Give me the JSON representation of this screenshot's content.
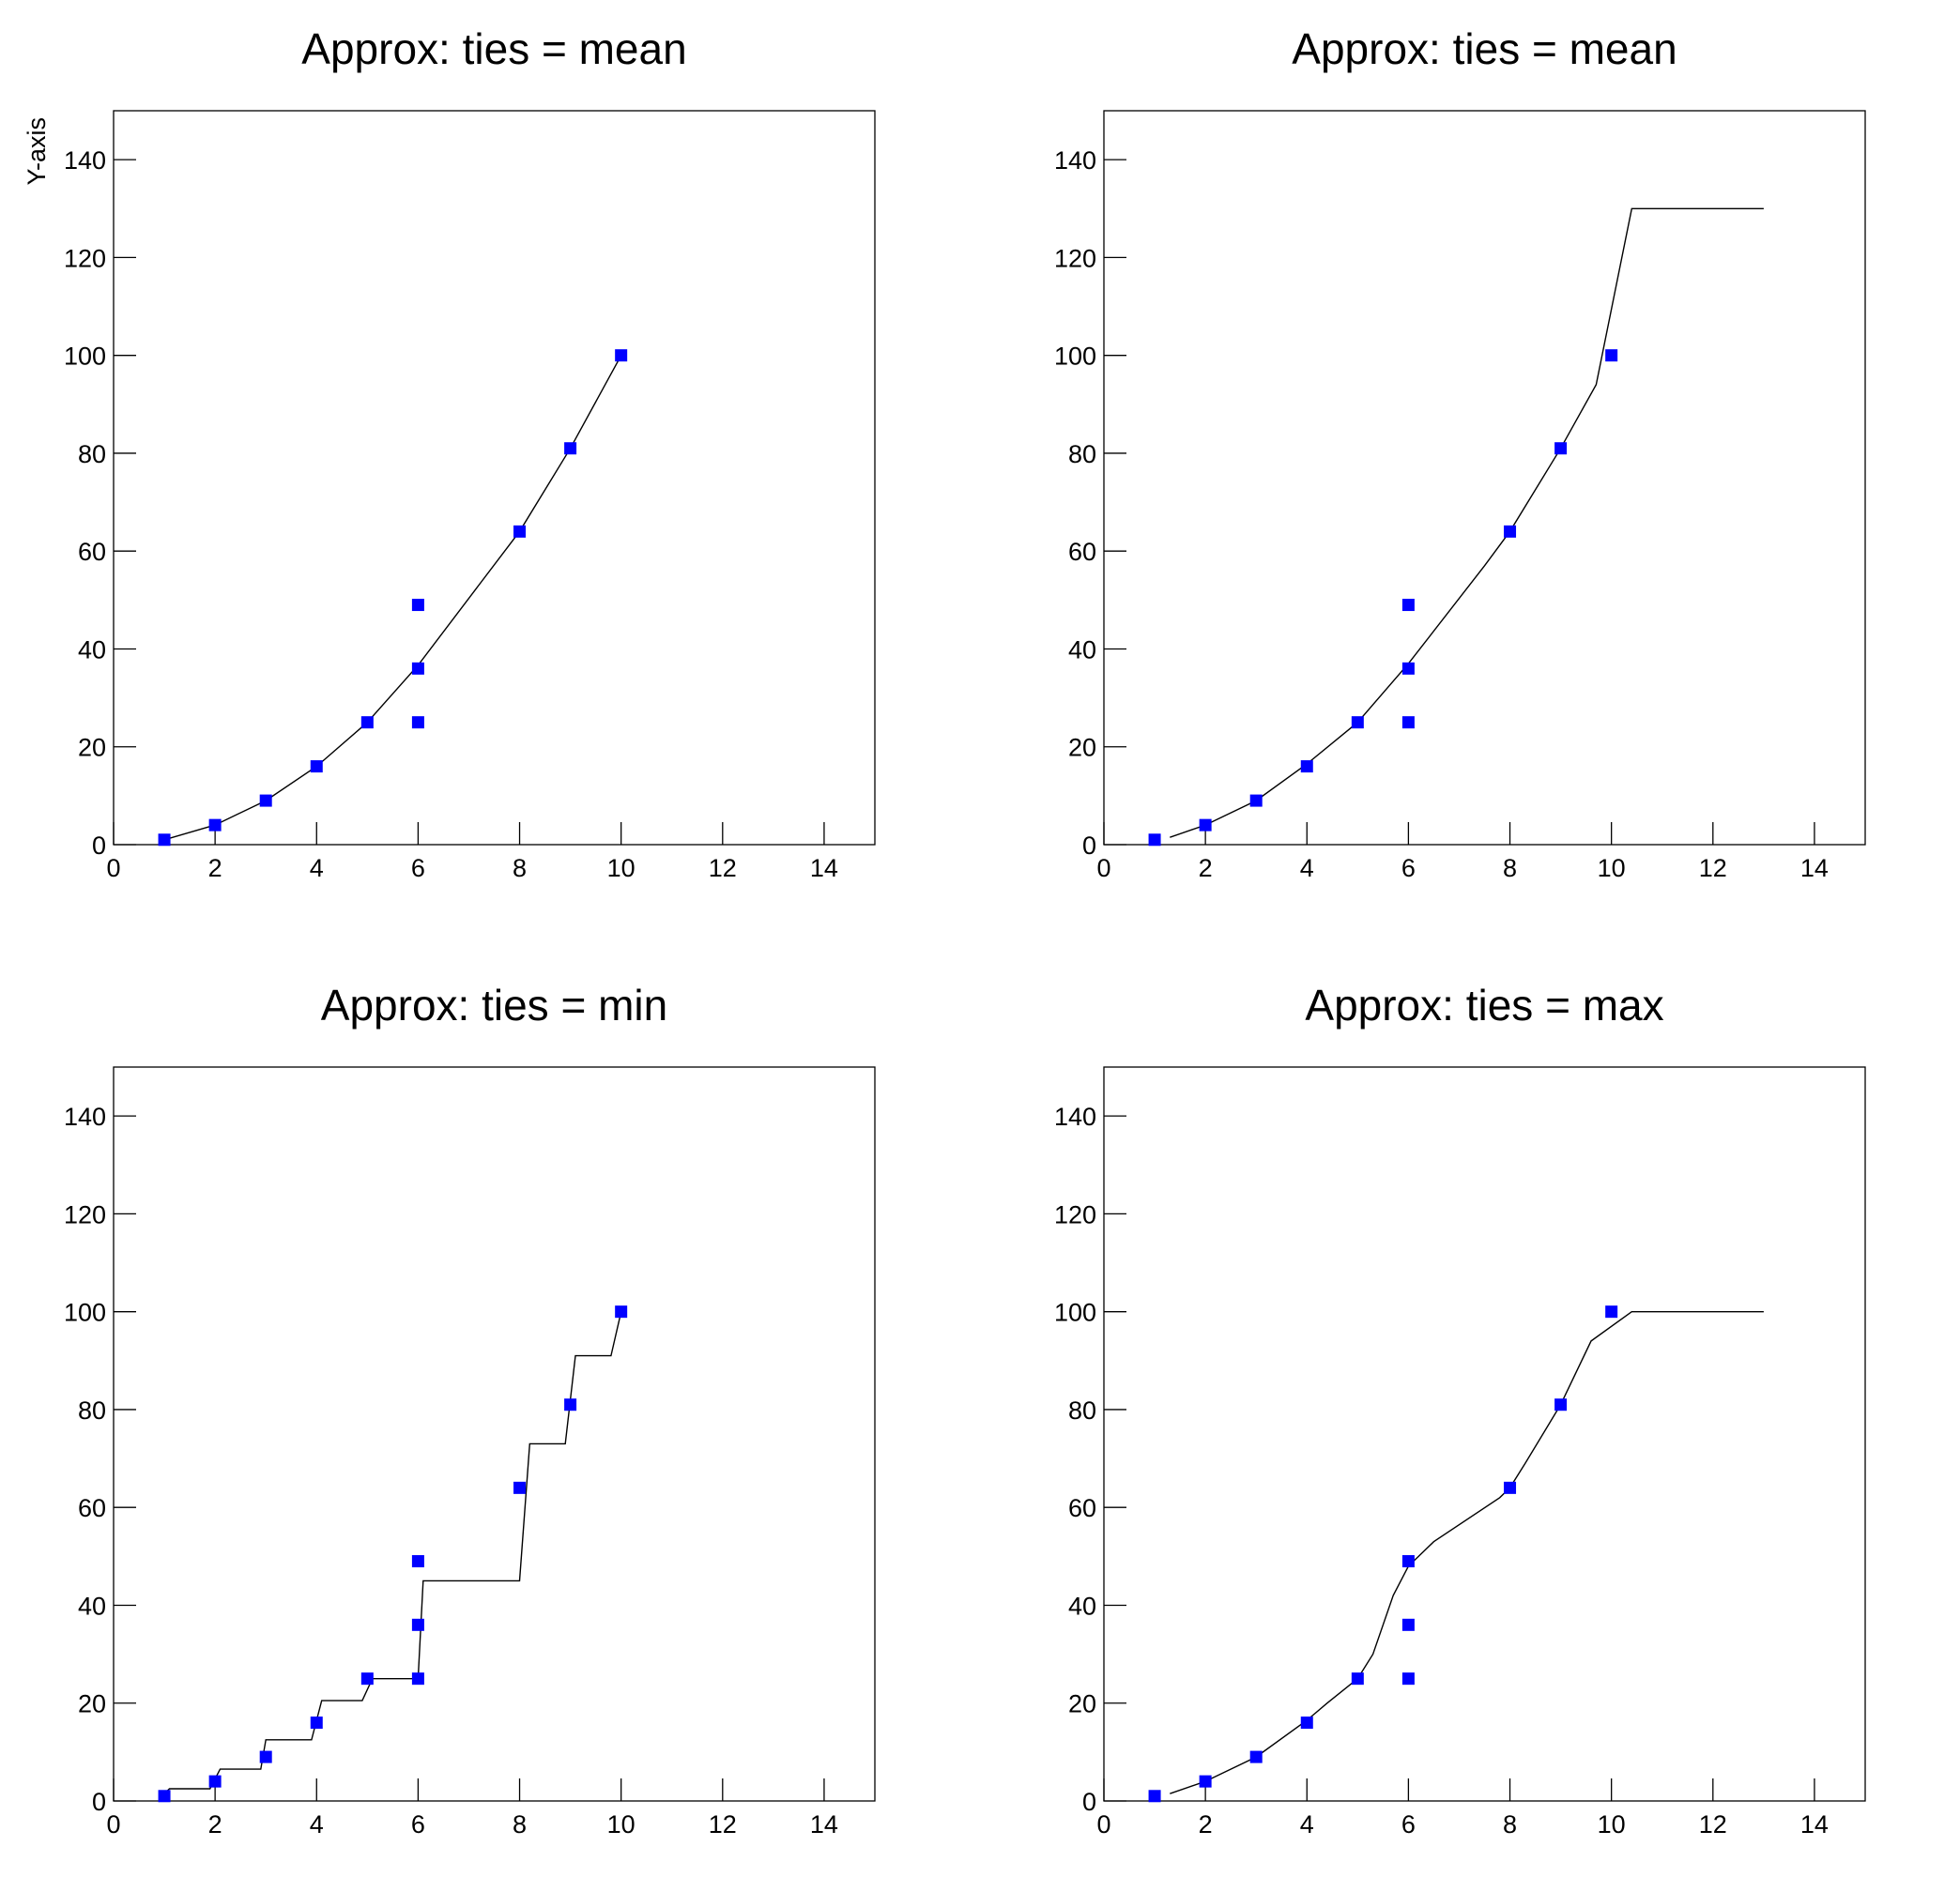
{
  "chart_data": [
    {
      "type": "scatter",
      "title": "Approx: ties = mean",
      "ylabel": "Y-axis",
      "xlim": [
        0,
        15
      ],
      "ylim": [
        0,
        150
      ],
      "xticks": [
        0,
        2,
        4,
        6,
        8,
        10,
        12,
        14
      ],
      "yticks": [
        0,
        20,
        40,
        60,
        80,
        100,
        120,
        140
      ],
      "series": [
        {
          "color": "#0000ff",
          "marker": "square",
          "x": [
            1,
            2,
            3,
            4,
            5,
            6,
            6,
            6,
            8,
            9,
            10
          ],
          "values": [
            1,
            4,
            9,
            16,
            25,
            25,
            36,
            49,
            64,
            81,
            100
          ]
        },
        {
          "color": "#000000",
          "marker": "line",
          "x": [
            1,
            2,
            3,
            4,
            5,
            6,
            8,
            9,
            10
          ],
          "values": [
            1,
            4,
            9,
            16,
            25,
            36.67,
            64,
            81,
            100
          ]
        }
      ]
    },
    {
      "type": "scatter",
      "title": "Approx: ties = mean",
      "xlim": [
        0,
        15
      ],
      "ylim": [
        0,
        150
      ],
      "xticks": [
        0,
        2,
        4,
        6,
        8,
        10,
        12,
        14
      ],
      "yticks": [
        0,
        20,
        40,
        60,
        80,
        100,
        120,
        140
      ],
      "series": [
        {
          "color": "#0000ff",
          "marker": "square",
          "x": [
            1,
            2,
            3,
            4,
            5,
            6,
            6,
            6,
            8,
            9,
            10
          ],
          "values": [
            1,
            4,
            9,
            16,
            25,
            25,
            36,
            49,
            64,
            81,
            100
          ]
        },
        {
          "color": "#000000",
          "marker": "line",
          "x": [
            1.3,
            2,
            3,
            4,
            5,
            6,
            7.5,
            8,
            9,
            9.7,
            10.4,
            13
          ],
          "values": [
            1.5,
            4,
            9,
            16.5,
            25,
            37,
            57,
            64,
            81,
            94,
            130,
            130
          ]
        }
      ]
    },
    {
      "type": "scatter",
      "title": "Approx: ties = min",
      "xlim": [
        0,
        15
      ],
      "ylim": [
        0,
        150
      ],
      "xticks": [
        0,
        2,
        4,
        6,
        8,
        10,
        12,
        14
      ],
      "yticks": [
        0,
        20,
        40,
        60,
        80,
        100,
        120,
        140
      ],
      "series": [
        {
          "color": "#0000ff",
          "marker": "square",
          "x": [
            1,
            2,
            3,
            4,
            5,
            6,
            6,
            6,
            8,
            9,
            10
          ],
          "values": [
            1,
            4,
            9,
            16,
            25,
            25,
            36,
            49,
            64,
            81,
            100
          ]
        },
        {
          "color": "#000000",
          "marker": "line",
          "x": [
            1,
            1.1,
            1.9,
            2.1,
            2.9,
            3,
            3.9,
            4.1,
            4.9,
            5.1,
            6,
            6.1,
            8,
            8.2,
            8.9,
            9.1,
            9.8,
            10
          ],
          "values": [
            1.5,
            2.5,
            2.5,
            6.5,
            6.5,
            12.5,
            12.5,
            20.5,
            20.5,
            25,
            25,
            45,
            45,
            73,
            73,
            91,
            91,
            100
          ]
        }
      ]
    },
    {
      "type": "scatter",
      "title": "Approx: ties = max",
      "xlim": [
        0,
        15
      ],
      "ylim": [
        0,
        150
      ],
      "xticks": [
        0,
        2,
        4,
        6,
        8,
        10,
        12,
        14
      ],
      "yticks": [
        0,
        20,
        40,
        60,
        80,
        100,
        120,
        140
      ],
      "series": [
        {
          "color": "#0000ff",
          "marker": "square",
          "x": [
            1,
            2,
            3,
            4,
            5,
            6,
            6,
            6,
            8,
            9,
            10
          ],
          "values": [
            1,
            4,
            9,
            16,
            25,
            25,
            36,
            49,
            64,
            81,
            100
          ]
        },
        {
          "color": "#000000",
          "marker": "line",
          "x": [
            1.3,
            2,
            3,
            4,
            4.4,
            5,
            5.3,
            5.7,
            6,
            6.5,
            7.8,
            8,
            8.3,
            9,
            9.6,
            10.4,
            13
          ],
          "values": [
            1.5,
            4,
            9,
            16.5,
            20,
            25,
            30,
            42,
            48,
            53,
            62,
            64,
            69,
            81,
            94,
            100,
            100
          ]
        }
      ]
    }
  ]
}
